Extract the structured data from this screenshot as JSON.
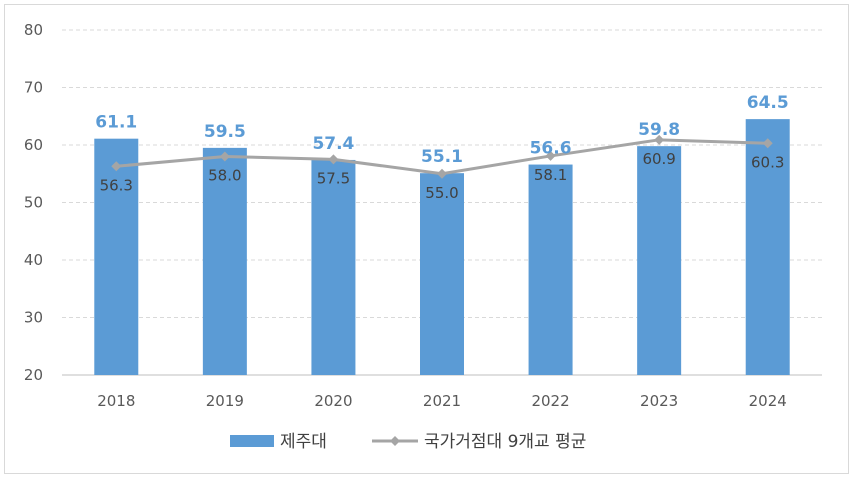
{
  "chart_data": {
    "type": "bar",
    "categories": [
      "2018",
      "2019",
      "2020",
      "2021",
      "2022",
      "2023",
      "2024"
    ],
    "series": [
      {
        "name": "제주대",
        "type": "bar",
        "color": "#5b9bd5",
        "values": [
          61.1,
          59.5,
          57.4,
          55.1,
          56.6,
          59.8,
          64.5
        ]
      },
      {
        "name": "국가거점대 9개교 평균",
        "type": "line",
        "color": "#a5a5a5",
        "values": [
          56.3,
          58.0,
          57.5,
          55.0,
          58.1,
          60.9,
          60.3
        ]
      }
    ],
    "ylim": [
      20,
      80
    ],
    "yticks": [
      20,
      30,
      40,
      50,
      60,
      70,
      80
    ],
    "grid": true,
    "legend": "bottom"
  }
}
